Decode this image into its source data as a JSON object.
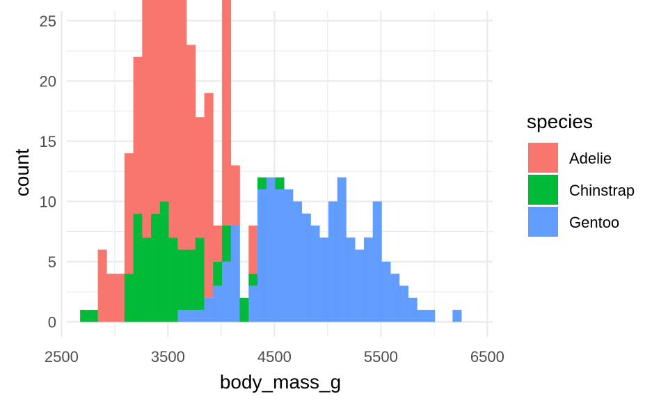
{
  "chart_data": {
    "type": "bar",
    "subtype": "stacked-histogram",
    "xlabel": "body_mass_g",
    "ylabel": "count",
    "xlim": [
      2550,
      6550
    ],
    "ylim": [
      -1.25,
      25.8
    ],
    "x_ticks": [
      2500,
      3500,
      4500,
      5500,
      6500
    ],
    "x_tick_labels": [
      "2500",
      "3500",
      "4500",
      "5500",
      "6500"
    ],
    "y_ticks": [
      0,
      5,
      10,
      15,
      20,
      25
    ],
    "y_tick_labels": [
      "0",
      "5",
      "10",
      "15",
      "20",
      "25"
    ],
    "grid": true,
    "bin_width": 83.3,
    "bin_start": 2675,
    "bin_count": 44,
    "legend": {
      "title": "species",
      "position": "right"
    },
    "series": [
      {
        "name": "Adelie",
        "color": "#F8766D",
        "values": [
          0,
          0,
          6,
          4,
          4,
          10,
          13,
          24,
          22,
          24,
          25,
          25,
          17,
          10,
          17,
          3,
          19,
          5,
          0,
          4,
          0,
          0,
          0,
          0,
          0,
          0,
          0,
          0,
          0,
          0,
          0,
          0,
          0,
          0,
          0,
          0,
          0,
          0,
          0,
          0,
          0,
          0,
          0,
          0
        ]
      },
      {
        "name": "Chinstrap",
        "color": "#00BA38",
        "values": [
          1,
          1,
          0,
          0,
          0,
          4,
          9,
          7,
          9,
          10,
          7,
          5,
          5,
          6,
          0,
          2,
          3,
          0,
          2,
          1,
          1,
          0,
          1,
          0,
          0,
          0,
          0,
          0,
          0,
          0,
          0,
          0,
          0,
          0,
          0,
          0,
          0,
          0,
          0,
          0,
          0,
          0,
          0,
          0
        ]
      },
      {
        "name": "Gentoo",
        "color": "#619CFF",
        "values": [
          0,
          0,
          0,
          0,
          0,
          0,
          0,
          0,
          0,
          0,
          0,
          1,
          1,
          1,
          2,
          3,
          5,
          8,
          0,
          3,
          11,
          12,
          11,
          11,
          10,
          9,
          8,
          7,
          10,
          12,
          7,
          6,
          7,
          10,
          5,
          4,
          3,
          2,
          1,
          1,
          0,
          0,
          1,
          0
        ]
      }
    ]
  }
}
